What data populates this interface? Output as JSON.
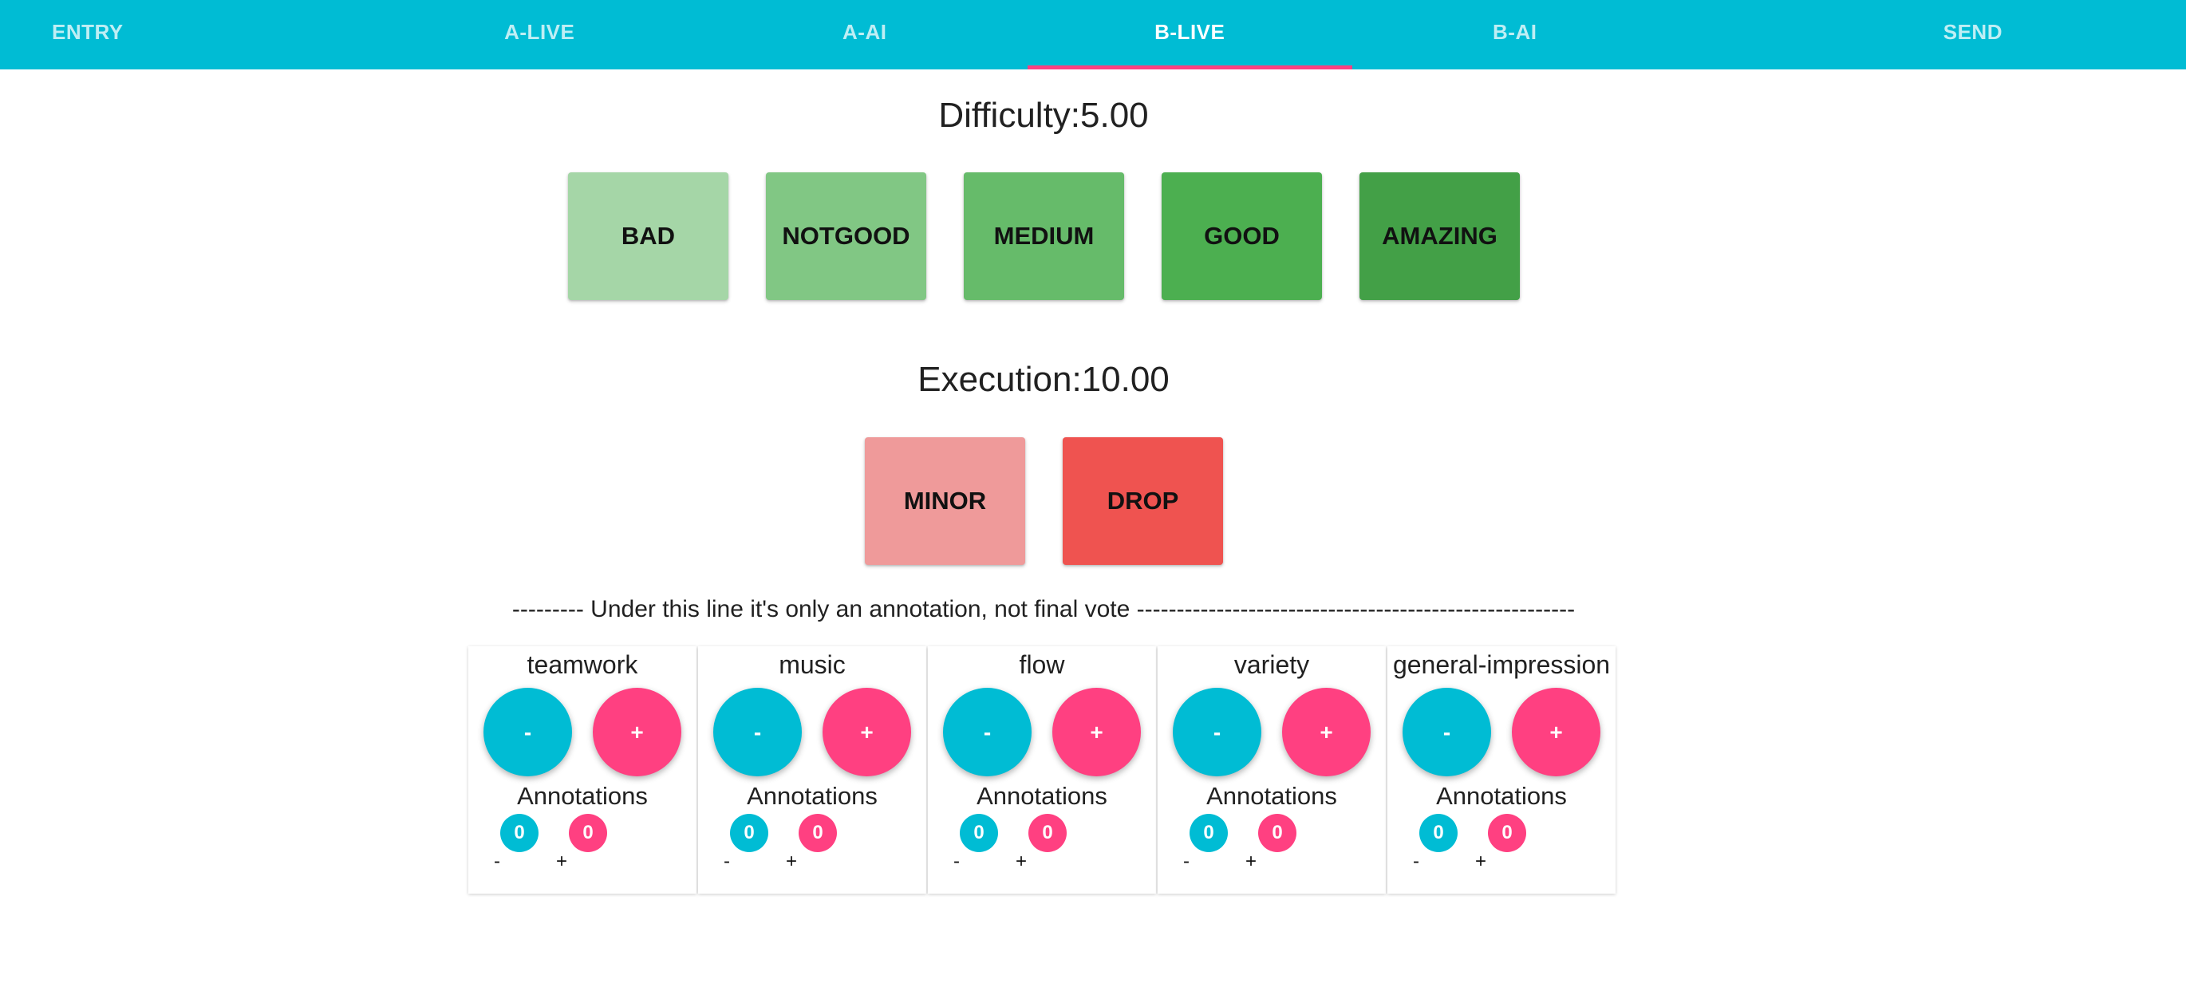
{
  "tabs": [
    {
      "label": "ENTRY",
      "active": false
    },
    {
      "label": "A-LIVE",
      "active": false
    },
    {
      "label": "A-AI",
      "active": false
    },
    {
      "label": "B-LIVE",
      "active": true
    },
    {
      "label": "B-AI",
      "active": false
    },
    {
      "label": "SEND",
      "active": false
    }
  ],
  "difficulty": {
    "title": "Difficulty:5.00",
    "buttons": [
      {
        "label": "BAD",
        "color": "#a5d6a7"
      },
      {
        "label": "NOTGOOD",
        "color": "#81c784"
      },
      {
        "label": "MEDIUM",
        "color": "#66bb6a"
      },
      {
        "label": "GOOD",
        "color": "#4caf50"
      },
      {
        "label": "AMAZING",
        "color": "#43a047"
      }
    ]
  },
  "execution": {
    "title": "Execution:10.00",
    "buttons": [
      {
        "label": "MINOR",
        "color": "#ef9a9a"
      },
      {
        "label": "DROP",
        "color": "#ef5350"
      }
    ]
  },
  "divider": "--------- Under this line it's only an annotation, not final vote -------------------------------------------------------",
  "annotation_cards": [
    {
      "title": "teamwork",
      "minus_label": "-",
      "plus_label": "+",
      "annotations_label": "Annotations",
      "minus_count": "0",
      "plus_count": "0",
      "minus_sym": "-",
      "plus_sym": "+"
    },
    {
      "title": "music",
      "minus_label": "-",
      "plus_label": "+",
      "annotations_label": "Annotations",
      "minus_count": "0",
      "plus_count": "0",
      "minus_sym": "-",
      "plus_sym": "+"
    },
    {
      "title": "flow",
      "minus_label": "-",
      "plus_label": "+",
      "annotations_label": "Annotations",
      "minus_count": "0",
      "plus_count": "0",
      "minus_sym": "-",
      "plus_sym": "+"
    },
    {
      "title": "variety",
      "minus_label": "-",
      "plus_label": "+",
      "annotations_label": "Annotations",
      "minus_count": "0",
      "plus_count": "0",
      "minus_sym": "-",
      "plus_sym": "+"
    },
    {
      "title": "general-impression",
      "minus_label": "-",
      "plus_label": "+",
      "annotations_label": "Annotations",
      "minus_count": "0",
      "plus_count": "0",
      "minus_sym": "-",
      "plus_sym": "+"
    }
  ],
  "colors": {
    "primary": "#00bcd4",
    "accent": "#ff4081"
  }
}
